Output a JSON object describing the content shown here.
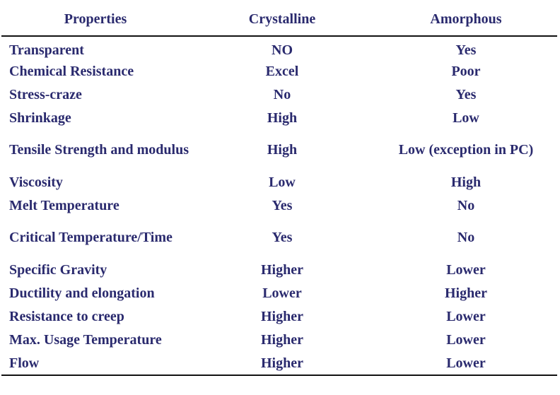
{
  "headers": {
    "properties": "Properties",
    "crystalline": "Crystalline",
    "amorphous": "Amorphous"
  },
  "rows": [
    {
      "property": "Transparent",
      "crystalline": "NO",
      "amorphous": "Yes"
    },
    {
      "property": "Chemical Resistance",
      "crystalline": "Excel",
      "amorphous": "Poor"
    },
    {
      "property": "Stress-craze",
      "crystalline": "No",
      "amorphous": "Yes"
    },
    {
      "property": "Shrinkage",
      "crystalline": "High",
      "amorphous": "Low"
    },
    {
      "property": "Tensile Strength and modulus",
      "crystalline": "High",
      "amorphous": "Low (exception in PC)"
    },
    {
      "property": "Viscosity",
      "crystalline": "Low",
      "amorphous": "High"
    },
    {
      "property": "Melt Temperature",
      "crystalline": "Yes",
      "amorphous": "No"
    },
    {
      "property": "Critical Temperature/Time",
      "crystalline": "Yes",
      "amorphous": "No"
    },
    {
      "property": "Specific Gravity",
      "crystalline": "Higher",
      "amorphous": "Lower"
    },
    {
      "property": "Ductility and elongation",
      "crystalline": "Lower",
      "amorphous": "Higher"
    },
    {
      "property": "Resistance to creep",
      "crystalline": "Higher",
      "amorphous": "Lower"
    },
    {
      "property": "Max. Usage Temperature",
      "crystalline": "Higher",
      "amorphous": "Lower"
    },
    {
      "property": "Flow",
      "crystalline": "Higher",
      "amorphous": "Lower"
    }
  ]
}
